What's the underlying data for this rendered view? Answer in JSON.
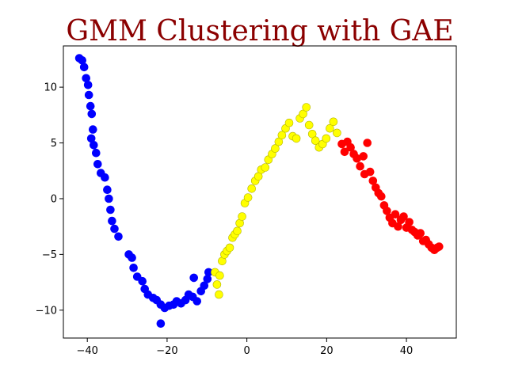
{
  "chart_data": {
    "type": "scatter",
    "title": "GMM Clustering with GAE",
    "xlabel": "",
    "ylabel": "",
    "xlim": [
      -46,
      52.5
    ],
    "ylim": [
      -12.5,
      13.7
    ],
    "xticks": [
      -40,
      -20,
      0,
      20,
      40
    ],
    "yticks": [
      -10,
      -5,
      0,
      5,
      10
    ],
    "grid": false,
    "legend": "none",
    "series": [
      {
        "color": "#0000ff",
        "points": [
          [
            -42.0,
            12.6
          ],
          [
            -41.3,
            12.4
          ],
          [
            -40.8,
            11.8
          ],
          [
            -40.3,
            10.8
          ],
          [
            -39.8,
            10.2
          ],
          [
            -39.6,
            9.3
          ],
          [
            -39.2,
            8.3
          ],
          [
            -38.9,
            7.6
          ],
          [
            -38.6,
            6.2
          ],
          [
            -39.0,
            5.4
          ],
          [
            -38.4,
            4.8
          ],
          [
            -37.8,
            4.1
          ],
          [
            -37.4,
            3.1
          ],
          [
            -36.6,
            2.3
          ],
          [
            -35.6,
            1.9
          ],
          [
            -35.0,
            0.8
          ],
          [
            -34.6,
            0.0
          ],
          [
            -34.2,
            -1.0
          ],
          [
            -33.8,
            -2.0
          ],
          [
            -33.2,
            -2.7
          ],
          [
            -32.2,
            -3.4
          ],
          [
            -29.6,
            -5.0
          ],
          [
            -28.8,
            -5.3
          ],
          [
            -28.4,
            -6.2
          ],
          [
            -27.5,
            -7.0
          ],
          [
            -26.2,
            -7.4
          ],
          [
            -25.6,
            -8.1
          ],
          [
            -24.8,
            -8.6
          ],
          [
            -23.5,
            -8.9
          ],
          [
            -22.6,
            -9.1
          ],
          [
            -21.6,
            -9.5
          ],
          [
            -20.6,
            -9.8
          ],
          [
            -19.5,
            -9.6
          ],
          [
            -18.4,
            -9.5
          ],
          [
            -17.6,
            -9.2
          ],
          [
            -16.5,
            -9.4
          ],
          [
            -15.4,
            -9.1
          ],
          [
            -14.6,
            -8.6
          ],
          [
            -13.6,
            -8.8
          ],
          [
            -13.3,
            -7.1
          ],
          [
            -12.5,
            -9.2
          ],
          [
            -11.5,
            -8.3
          ],
          [
            -10.7,
            -7.8
          ],
          [
            -9.9,
            -7.2
          ],
          [
            -9.6,
            -6.6
          ],
          [
            -21.6,
            -11.2
          ]
        ]
      },
      {
        "color": "#ffff00",
        "points": [
          [
            -8.0,
            -6.6
          ],
          [
            -7.5,
            -7.7
          ],
          [
            -7.0,
            -8.6
          ],
          [
            -6.8,
            -6.9
          ],
          [
            -6.2,
            -5.6
          ],
          [
            -5.6,
            -5.0
          ],
          [
            -5.0,
            -4.7
          ],
          [
            -4.3,
            -4.4
          ],
          [
            -3.6,
            -3.5
          ],
          [
            -3.0,
            -3.2
          ],
          [
            -2.4,
            -2.9
          ],
          [
            -1.8,
            -2.2
          ],
          [
            -1.2,
            -1.6
          ],
          [
            -0.5,
            -0.4
          ],
          [
            0.3,
            0.1
          ],
          [
            1.2,
            0.9
          ],
          [
            2.1,
            1.6
          ],
          [
            2.9,
            2.0
          ],
          [
            3.6,
            2.6
          ],
          [
            4.6,
            2.8
          ],
          [
            5.4,
            3.5
          ],
          [
            6.3,
            4.0
          ],
          [
            7.1,
            4.5
          ],
          [
            8.0,
            5.1
          ],
          [
            8.8,
            5.7
          ],
          [
            9.7,
            6.3
          ],
          [
            10.6,
            6.8
          ],
          [
            11.5,
            5.6
          ],
          [
            12.4,
            5.4
          ],
          [
            13.3,
            7.2
          ],
          [
            14.1,
            7.6
          ],
          [
            14.9,
            8.2
          ],
          [
            15.6,
            6.6
          ],
          [
            16.4,
            5.8
          ],
          [
            17.2,
            5.2
          ],
          [
            18.1,
            4.6
          ],
          [
            19.0,
            4.9
          ],
          [
            19.9,
            5.4
          ],
          [
            20.8,
            6.3
          ],
          [
            21.7,
            6.9
          ],
          [
            22.6,
            5.9
          ]
        ]
      },
      {
        "color": "#ff0000",
        "points": [
          [
            23.8,
            4.9
          ],
          [
            24.5,
            4.2
          ],
          [
            25.2,
            5.1
          ],
          [
            26.0,
            4.6
          ],
          [
            26.8,
            4.0
          ],
          [
            27.6,
            3.6
          ],
          [
            28.4,
            2.9
          ],
          [
            29.2,
            3.8
          ],
          [
            29.5,
            2.2
          ],
          [
            30.2,
            5.0
          ],
          [
            30.9,
            2.4
          ],
          [
            31.6,
            1.6
          ],
          [
            32.3,
            1.0
          ],
          [
            33.0,
            0.5
          ],
          [
            33.7,
            0.2
          ],
          [
            34.4,
            -0.6
          ],
          [
            35.1,
            -1.1
          ],
          [
            35.8,
            -1.7
          ],
          [
            36.5,
            -2.2
          ],
          [
            37.2,
            -1.4
          ],
          [
            37.9,
            -2.5
          ],
          [
            38.6,
            -1.9
          ],
          [
            39.3,
            -1.6
          ],
          [
            40.0,
            -2.6
          ],
          [
            40.7,
            -2.1
          ],
          [
            41.4,
            -2.8
          ],
          [
            42.1,
            -3.0
          ],
          [
            42.8,
            -3.3
          ],
          [
            43.5,
            -3.1
          ],
          [
            44.2,
            -3.8
          ],
          [
            44.9,
            -3.7
          ],
          [
            45.6,
            -4.1
          ],
          [
            46.3,
            -4.4
          ],
          [
            47.0,
            -4.6
          ],
          [
            47.7,
            -4.4
          ],
          [
            48.2,
            -4.3
          ]
        ]
      }
    ]
  }
}
